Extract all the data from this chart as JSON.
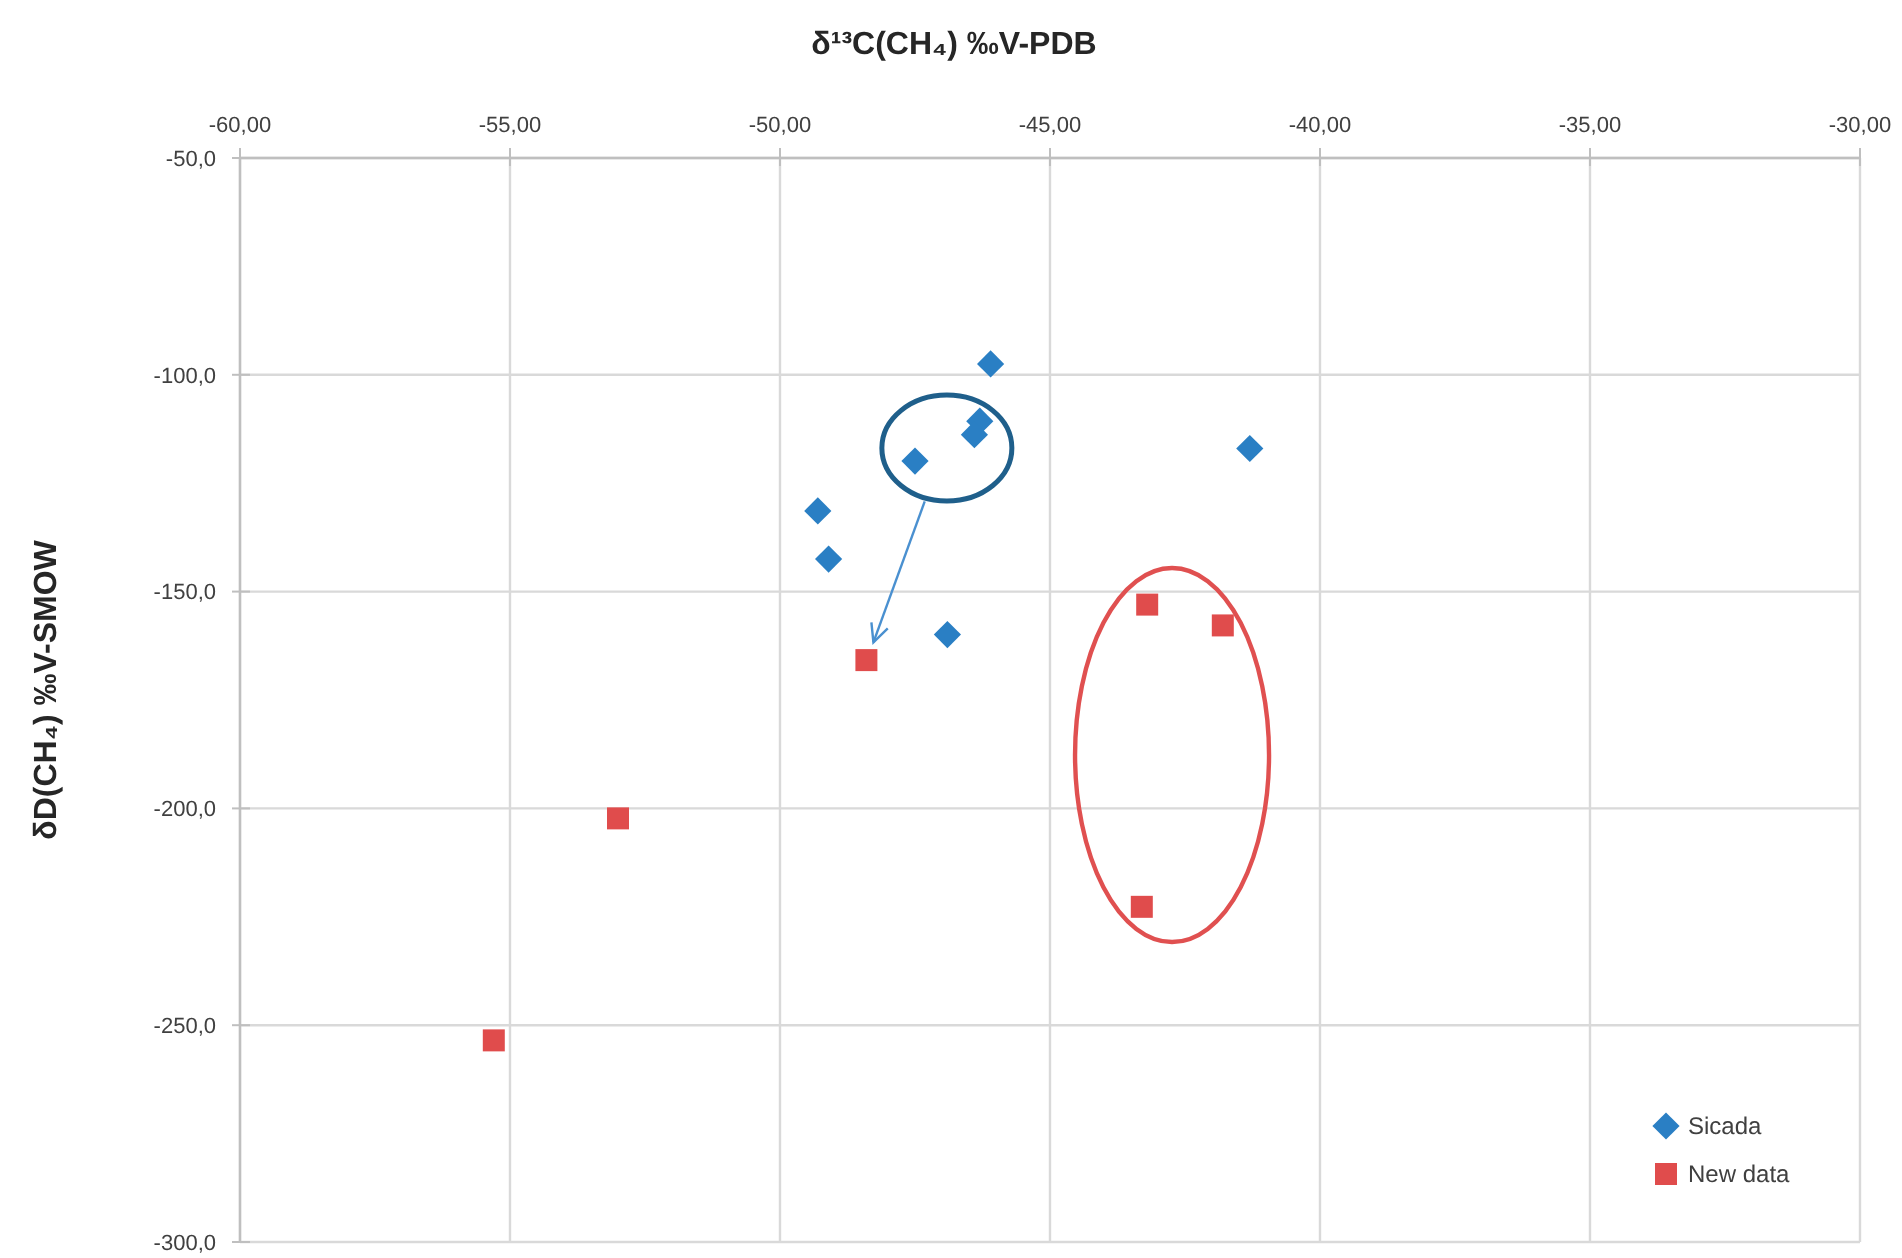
{
  "chart_data": {
    "type": "scatter",
    "xlabel": "δ¹³C(CH₄) ‰V-PDB",
    "ylabel": "δD(CH₄) ‰V-SMOW",
    "xlim": [
      -60,
      -30
    ],
    "ylim": [
      -300,
      -50
    ],
    "xticks": [
      {
        "value": -60,
        "label": "-60,00"
      },
      {
        "value": -55,
        "label": "-55,00"
      },
      {
        "value": -50,
        "label": "-50,00"
      },
      {
        "value": -45,
        "label": "-45,00"
      },
      {
        "value": -40,
        "label": "-40,00"
      },
      {
        "value": -35,
        "label": "-35,00"
      },
      {
        "value": -30,
        "label": "-30,00"
      }
    ],
    "yticks": [
      {
        "value": -50,
        "label": "-50,0"
      },
      {
        "value": -100,
        "label": "-100,0"
      },
      {
        "value": -150,
        "label": "-150,0"
      },
      {
        "value": -200,
        "label": "-200,0"
      },
      {
        "value": -250,
        "label": "-250,0"
      },
      {
        "value": -300,
        "label": "-300,0"
      }
    ],
    "grid": true,
    "legend": "bottom right",
    "series": [
      {
        "name": "Sicada",
        "color": "#2a7fc4",
        "marker": "diamond",
        "x": [
          -46.1,
          -46.3,
          -46.4,
          -47.5,
          -49.3,
          -49.1,
          -46.9,
          -41.3
        ],
        "values": [
          -97.5,
          -110.7,
          -113.8,
          -119.9,
          -131.4,
          -142.5,
          -159.9,
          -117.0
        ]
      },
      {
        "name": "New data",
        "color": "#e04c4c",
        "marker": "square",
        "x": [
          -48.4,
          -43.2,
          -41.8,
          -53.0,
          -55.3,
          -43.3
        ],
        "values": [
          -165.8,
          -153.0,
          -157.8,
          -202.3,
          -253.5,
          -222.7
        ]
      }
    ]
  }
}
